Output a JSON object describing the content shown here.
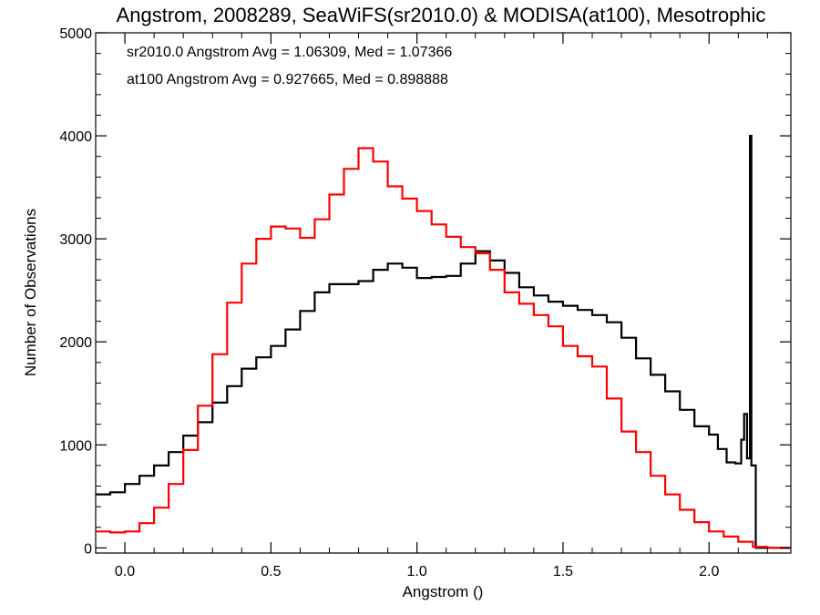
{
  "chart_data": {
    "type": "line",
    "title": "Angstrom, 2008289, SeaWiFS(sr2010.0) & MODISA(at100), Mesotrophic",
    "xlabel": "Angstrom ()",
    "ylabel": "Number of Observations",
    "xlim": [
      -0.1,
      2.28
    ],
    "ylim": [
      -50,
      5000
    ],
    "x_ticks": [
      "0.0",
      "0.5",
      "1.0",
      "1.5",
      "2.0"
    ],
    "y_ticks": [
      "0",
      "1000",
      "2000",
      "3000",
      "4000",
      "5000"
    ],
    "grid": false,
    "annotations": [
      {
        "text": "sr2010.0 Angstrom Avg = 1.06309, Med = 1.07366",
        "color": "#000000"
      },
      {
        "text": "at100 Angstrom Avg = 0.927665, Med = 0.898888",
        "color": "#ff0000"
      }
    ],
    "series": [
      {
        "color": "#000000",
        "points": [
          [
            -0.1,
            520
          ],
          [
            -0.05,
            540
          ],
          [
            0.0,
            620
          ],
          [
            0.05,
            700
          ],
          [
            0.1,
            800
          ],
          [
            0.15,
            930
          ],
          [
            0.2,
            1090
          ],
          [
            0.25,
            1220
          ],
          [
            0.3,
            1410
          ],
          [
            0.35,
            1570
          ],
          [
            0.4,
            1740
          ],
          [
            0.45,
            1850
          ],
          [
            0.5,
            1960
          ],
          [
            0.55,
            2120
          ],
          [
            0.6,
            2300
          ],
          [
            0.65,
            2480
          ],
          [
            0.7,
            2560
          ],
          [
            0.75,
            2560
          ],
          [
            0.8,
            2590
          ],
          [
            0.85,
            2700
          ],
          [
            0.9,
            2760
          ],
          [
            0.95,
            2720
          ],
          [
            1.0,
            2620
          ],
          [
            1.05,
            2630
          ],
          [
            1.1,
            2640
          ],
          [
            1.15,
            2760
          ],
          [
            1.2,
            2880
          ],
          [
            1.25,
            2790
          ],
          [
            1.3,
            2670
          ],
          [
            1.35,
            2530
          ],
          [
            1.4,
            2450
          ],
          [
            1.45,
            2390
          ],
          [
            1.5,
            2350
          ],
          [
            1.55,
            2310
          ],
          [
            1.6,
            2260
          ],
          [
            1.65,
            2190
          ],
          [
            1.7,
            2040
          ],
          [
            1.75,
            1840
          ],
          [
            1.8,
            1680
          ],
          [
            1.85,
            1520
          ],
          [
            1.9,
            1340
          ],
          [
            1.95,
            1180
          ],
          [
            2.0,
            1100
          ],
          [
            2.03,
            960
          ],
          [
            2.06,
            830
          ],
          [
            2.09,
            820
          ],
          [
            2.11,
            1050
          ],
          [
            2.12,
            1300
          ],
          [
            2.13,
            870
          ],
          [
            2.14,
            4000
          ],
          [
            2.145,
            800
          ],
          [
            2.16,
            0
          ],
          [
            2.28,
            0
          ]
        ]
      },
      {
        "color": "#ff0000",
        "points": [
          [
            -0.1,
            160
          ],
          [
            -0.05,
            150
          ],
          [
            0.0,
            160
          ],
          [
            0.05,
            240
          ],
          [
            0.1,
            390
          ],
          [
            0.15,
            620
          ],
          [
            0.2,
            950
          ],
          [
            0.25,
            1380
          ],
          [
            0.3,
            1880
          ],
          [
            0.35,
            2380
          ],
          [
            0.4,
            2760
          ],
          [
            0.45,
            3000
          ],
          [
            0.5,
            3120
          ],
          [
            0.55,
            3100
          ],
          [
            0.6,
            3010
          ],
          [
            0.65,
            3190
          ],
          [
            0.7,
            3430
          ],
          [
            0.75,
            3680
          ],
          [
            0.8,
            3880
          ],
          [
            0.85,
            3750
          ],
          [
            0.9,
            3510
          ],
          [
            0.95,
            3390
          ],
          [
            1.0,
            3270
          ],
          [
            1.05,
            3140
          ],
          [
            1.1,
            3020
          ],
          [
            1.15,
            2920
          ],
          [
            1.2,
            2860
          ],
          [
            1.25,
            2700
          ],
          [
            1.3,
            2480
          ],
          [
            1.35,
            2370
          ],
          [
            1.4,
            2260
          ],
          [
            1.45,
            2150
          ],
          [
            1.5,
            1960
          ],
          [
            1.55,
            1860
          ],
          [
            1.6,
            1760
          ],
          [
            1.65,
            1450
          ],
          [
            1.7,
            1130
          ],
          [
            1.75,
            930
          ],
          [
            1.8,
            700
          ],
          [
            1.85,
            520
          ],
          [
            1.9,
            370
          ],
          [
            1.95,
            250
          ],
          [
            2.0,
            160
          ],
          [
            2.05,
            110
          ],
          [
            2.1,
            60
          ],
          [
            2.15,
            10
          ],
          [
            2.2,
            0
          ],
          [
            2.28,
            0
          ]
        ]
      }
    ]
  }
}
